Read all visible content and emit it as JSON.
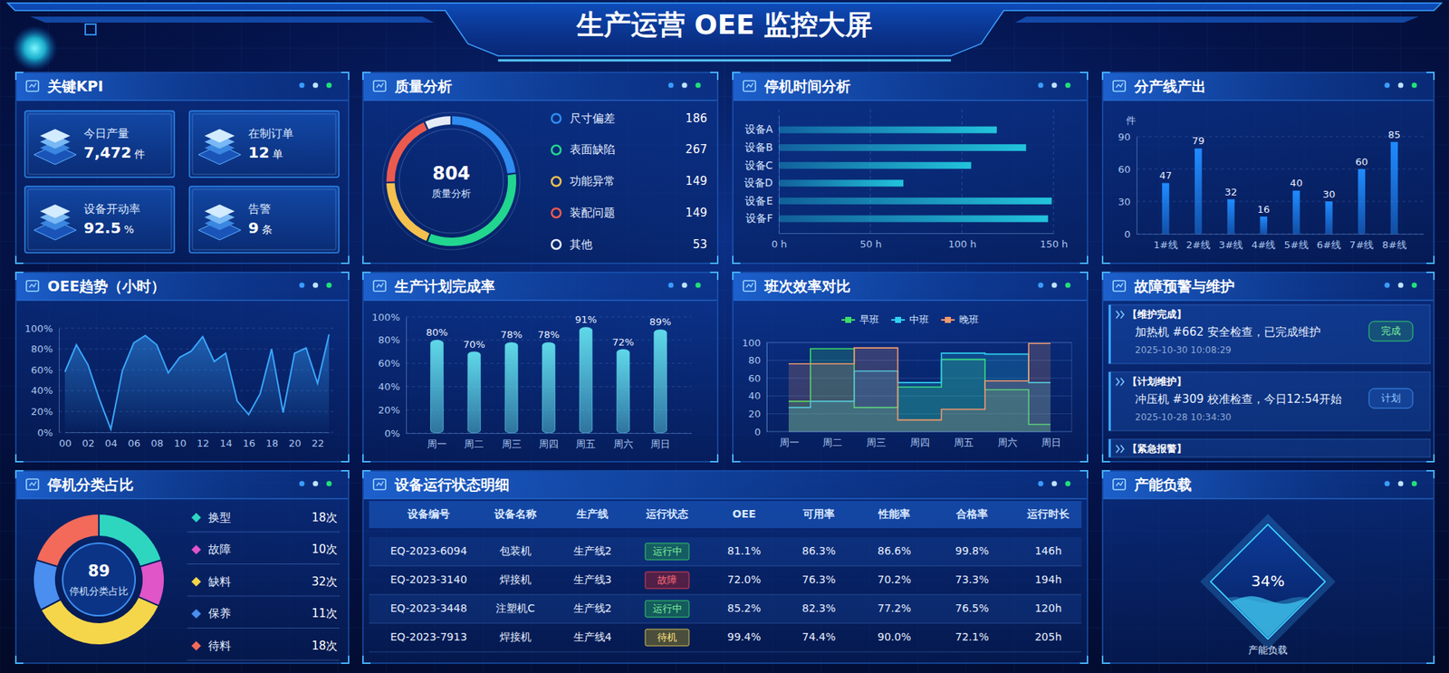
{
  "header": {
    "title": "生产运营 OEE 监控大屏"
  },
  "kpi": {
    "title": "关键KPI",
    "items": [
      {
        "label": "今日产量",
        "value": "7,472",
        "unit": "件"
      },
      {
        "label": "在制订单",
        "value": "12",
        "unit": "单"
      },
      {
        "label": "设备开动率",
        "value": "92.5",
        "unit": "%"
      },
      {
        "label": "告警",
        "value": "9",
        "unit": "条"
      }
    ]
  },
  "chart_data": [
    {
      "type": "pie",
      "title": "质量分析",
      "center_value": 804,
      "center_label": "质量分析",
      "categories": [
        "尺寸偏差",
        "表面缺陷",
        "功能异常",
        "装配问题",
        "其他"
      ],
      "values": [
        186,
        267,
        149,
        149,
        53
      ],
      "colors": [
        "#2f8cf0",
        "#22d68f",
        "#f5c14e",
        "#ec5a4f",
        "#e6ecf5"
      ],
      "legend": "right"
    },
    {
      "type": "bar",
      "title": "停机时间分析",
      "orientation": "horizontal",
      "categories": [
        "设备A",
        "设备B",
        "设备C",
        "设备D",
        "设备E",
        "设备F"
      ],
      "values": [
        119,
        135,
        105,
        68,
        149,
        147
      ],
      "color": "#22c4dc",
      "xlim": [
        0,
        150
      ],
      "xticks": [
        {
          "value": 0,
          "label": "0 h"
        },
        {
          "value": 50,
          "label": "50 h"
        },
        {
          "value": 100,
          "label": "100 h"
        },
        {
          "value": 150,
          "label": "150 h"
        }
      ],
      "grid": true
    },
    {
      "type": "bar",
      "title": "分产线产出",
      "ylabel": "件",
      "categories": [
        "1#线",
        "2#线",
        "3#线",
        "4#线",
        "5#线",
        "6#线",
        "7#线",
        "8#线"
      ],
      "values": [
        47,
        79,
        32,
        16,
        40,
        30,
        60,
        85
      ],
      "color": "#1f8bff",
      "ylim": [
        0,
        90
      ],
      "yticks": [
        0,
        30,
        60,
        90
      ],
      "grid": true,
      "data_labels": true
    },
    {
      "type": "line",
      "title": "OEE趋势（小时）",
      "categories": [
        "00",
        null,
        "02",
        null,
        "04",
        null,
        "06",
        null,
        "08",
        null,
        "10",
        null,
        "12",
        null,
        "14",
        null,
        "16",
        null,
        "18",
        null,
        "20",
        null,
        "22",
        null
      ],
      "values": [
        58,
        84,
        65,
        32,
        3,
        59,
        86,
        93,
        84,
        57,
        72,
        78,
        92,
        68,
        76,
        30,
        17,
        37,
        80,
        19,
        76,
        81,
        47,
        94
      ],
      "color": "#3aa6ff",
      "ylim": [
        0,
        100
      ],
      "yticks": [
        {
          "value": 0,
          "label": "0%"
        },
        {
          "value": 20,
          "label": "20%"
        },
        {
          "value": 40,
          "label": "40%"
        },
        {
          "value": 60,
          "label": "60%"
        },
        {
          "value": 80,
          "label": "80%"
        },
        {
          "value": 100,
          "label": "100%"
        }
      ],
      "grid": true
    },
    {
      "type": "bar",
      "title": "生产计划完成率",
      "categories": [
        "周一",
        "周二",
        "周三",
        "周四",
        "周五",
        "周六",
        "周日"
      ],
      "values": [
        80,
        70,
        78,
        78,
        91,
        72,
        89
      ],
      "value_labels": [
        "80%",
        "70%",
        "78%",
        "78%",
        "91%",
        "72%",
        "89%"
      ],
      "color": "#5fd8e8",
      "ylim": [
        0,
        100
      ],
      "yticks": [
        {
          "value": 0,
          "label": "0%"
        },
        {
          "value": 20,
          "label": "20%"
        },
        {
          "value": 40,
          "label": "40%"
        },
        {
          "value": 60,
          "label": "60%"
        },
        {
          "value": 80,
          "label": "80%"
        },
        {
          "value": 100,
          "label": "100%"
        }
      ],
      "grid": true,
      "data_labels": true
    },
    {
      "type": "step",
      "title": "班次效率对比",
      "categories": [
        "周一",
        "周二",
        "周三",
        "周四",
        "周五",
        "周六",
        "周日"
      ],
      "series": [
        {
          "name": "早班",
          "color": "#3ddc6a",
          "values": [
            34,
            93,
            27,
            50,
            81,
            47,
            8
          ]
        },
        {
          "name": "中班",
          "color": "#2fd0ef",
          "values": [
            27,
            34,
            68,
            55,
            88,
            87,
            55
          ]
        },
        {
          "name": "晚班",
          "color": "#f29a6c",
          "values": [
            76,
            76,
            94,
            13,
            25,
            57,
            99
          ]
        }
      ],
      "ylim": [
        0,
        100
      ],
      "yticks": [
        0,
        20,
        40,
        60,
        80,
        100
      ],
      "grid": true,
      "legend": "top"
    },
    {
      "type": "pie",
      "title": "停机分类占比",
      "center_value": 89,
      "center_label": "停机分类占比",
      "categories": [
        "换型",
        "故障",
        "缺料",
        "保养",
        "待料"
      ],
      "values": [
        18,
        10,
        32,
        11,
        18
      ],
      "value_labels": [
        "18次",
        "10次",
        "32次",
        "11次",
        "18次"
      ],
      "colors": [
        "#2ed6c0",
        "#e055c8",
        "#f5d64a",
        "#4a8ef0",
        "#f36a5a"
      ],
      "legend": "right"
    },
    {
      "type": "gauge",
      "title": "产能负载",
      "value": 34,
      "value_label": "34%",
      "label": "产能负载",
      "ylim": [
        0,
        100
      ],
      "color": "#3fc6f0"
    }
  ],
  "alerts": {
    "title": "故障预警与维护",
    "items": [
      {
        "tag": "【维护完成】",
        "text": "加热机 #662 安全检查，已完成维护",
        "time": "2025-10-30 10:08:29",
        "status": "完成"
      },
      {
        "tag": "【计划维护】",
        "text": "冲压机 #309 校准检查，今日12:54开始",
        "time": "2025-10-28 10:34:30",
        "status": "计划"
      },
      {
        "tag": "【紧急报警】"
      }
    ]
  },
  "table": {
    "title": "设备运行状态明细",
    "columns": [
      "设备编号",
      "设备名称",
      "生产线",
      "运行状态",
      "OEE",
      "可用率",
      "性能率",
      "合格率",
      "运行时长"
    ],
    "rows": [
      [
        "EQ-2023-6094",
        "包装机",
        "生产线2",
        "运行中",
        "81.1%",
        "86.3%",
        "86.6%",
        "99.8%",
        "146h"
      ],
      [
        "EQ-2023-3140",
        "焊接机",
        "生产线3",
        "故障",
        "72.0%",
        "76.3%",
        "70.2%",
        "73.3%",
        "194h"
      ],
      [
        "EQ-2023-3448",
        "注塑机C",
        "生产线2",
        "运行中",
        "85.2%",
        "82.3%",
        "77.2%",
        "76.5%",
        "120h"
      ],
      [
        "EQ-2023-7913",
        "焊接机",
        "生产线4",
        "待机",
        "99.4%",
        "74.4%",
        "90.0%",
        "72.1%",
        "205h"
      ]
    ]
  }
}
